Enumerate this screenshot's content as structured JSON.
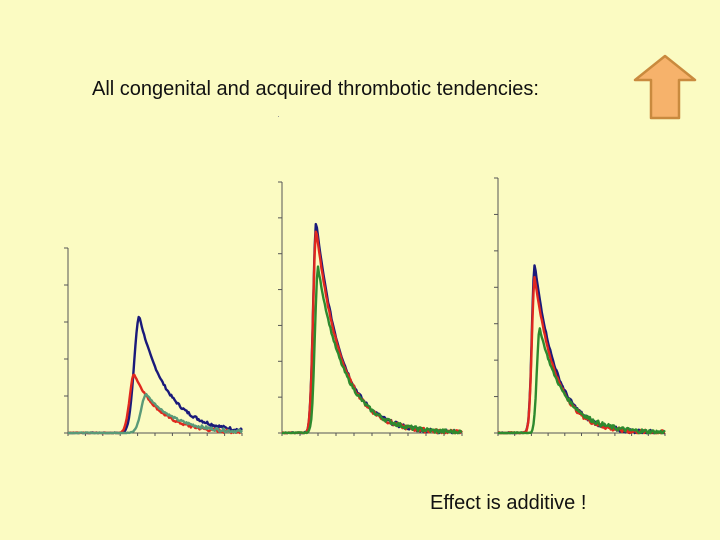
{
  "title": "All congenital and acquired thrombotic tendencies:",
  "footer": "Effect is additive !",
  "arrow_icon": "up-arrow-icon",
  "colors": {
    "background": "#fbfbc2",
    "blue": "#1a1a7a",
    "red": "#e0281e",
    "green": "#2e8a2e",
    "green_light": "#5a9a78",
    "arrow_fill": "#f6b26b",
    "arrow_stroke": "#c98a3e"
  },
  "chart_data": [
    {
      "type": "line",
      "panel": "left",
      "series": [
        {
          "color": "#1a1a7a",
          "peak_x": 0.41,
          "peak_y": 0.63,
          "width": 0.07,
          "tail": 0.16
        },
        {
          "color": "#e0281e",
          "peak_x": 0.38,
          "peak_y": 0.32,
          "width": 0.06,
          "tail": 0.15
        },
        {
          "color": "#5a9a78",
          "peak_x": 0.45,
          "peak_y": 0.21,
          "width": 0.07,
          "tail": 0.17
        }
      ]
    },
    {
      "type": "line",
      "panel": "middle",
      "series": [
        {
          "color": "#1a1a7a",
          "peak_x": 0.19,
          "peak_y": 0.84,
          "width": 0.04,
          "tail": 0.14
        },
        {
          "color": "#e0281e",
          "peak_x": 0.19,
          "peak_y": 0.81,
          "width": 0.04,
          "tail": 0.14
        },
        {
          "color": "#2e8a2e",
          "peak_x": 0.2,
          "peak_y": 0.66,
          "width": 0.04,
          "tail": 0.15
        }
      ]
    },
    {
      "type": "line",
      "panel": "right",
      "series": [
        {
          "color": "#1a1a7a",
          "peak_x": 0.22,
          "peak_y": 0.66,
          "width": 0.04,
          "tail": 0.13
        },
        {
          "color": "#e0281e",
          "peak_x": 0.22,
          "peak_y": 0.61,
          "width": 0.04,
          "tail": 0.13
        },
        {
          "color": "#2e8a2e",
          "peak_x": 0.25,
          "peak_y": 0.41,
          "width": 0.04,
          "tail": 0.15
        }
      ]
    }
  ]
}
